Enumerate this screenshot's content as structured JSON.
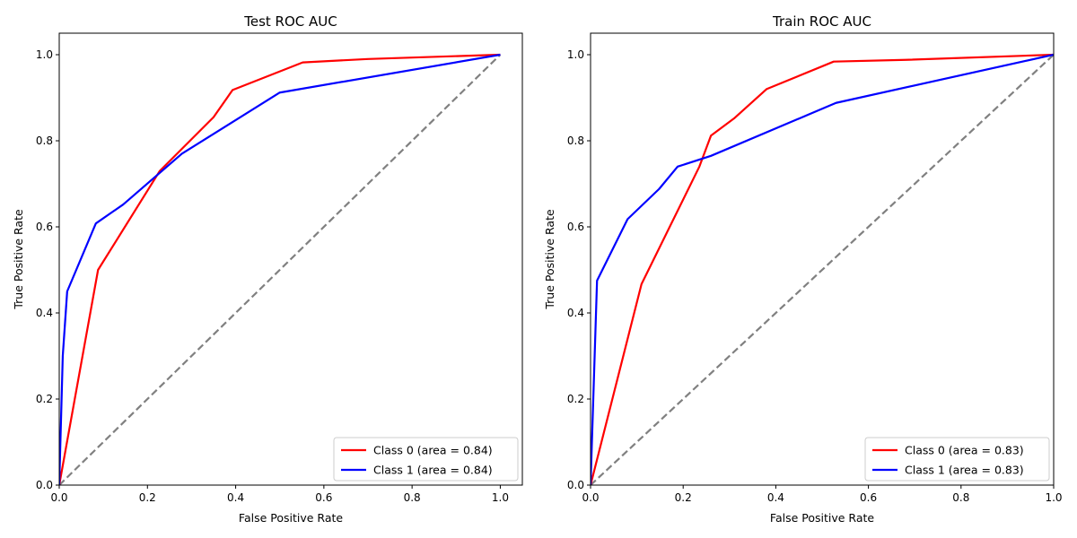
{
  "chart_data": [
    {
      "type": "line",
      "title": "Test ROC AUC",
      "xlabel": "False Positive Rate",
      "ylabel": "True Positive Rate",
      "xlim": [
        0.0,
        1.05
      ],
      "ylim": [
        0.0,
        1.05
      ],
      "grid": false,
      "legend_position": "lower right",
      "xticks": [
        "0.0",
        "0.2",
        "0.4",
        "0.6",
        "0.8",
        "1.0"
      ],
      "yticks": [
        "0.0",
        "0.2",
        "0.4",
        "0.6",
        "0.8",
        "1.0"
      ],
      "series": [
        {
          "name": "Class 0 (area = 0.84)",
          "color": "#ff0000",
          "x": [
            0.0,
            0.088,
            0.228,
            0.35,
            0.393,
            0.552,
            0.7,
            1.0
          ],
          "y": [
            0.0,
            0.5,
            0.73,
            0.855,
            0.918,
            0.982,
            0.99,
            1.0
          ]
        },
        {
          "name": "Class 1 (area = 0.84)",
          "color": "#0000ff",
          "x": [
            0.0,
            0.008,
            0.018,
            0.083,
            0.145,
            0.278,
            0.5,
            1.0
          ],
          "y": [
            0.0,
            0.3,
            0.45,
            0.608,
            0.652,
            0.77,
            0.912,
            1.0
          ]
        }
      ],
      "reference_line": {
        "x": [
          0.0,
          1.0
        ],
        "y": [
          0.0,
          1.0
        ],
        "color": "#808080",
        "style": "dashed"
      }
    },
    {
      "type": "line",
      "title": "Train ROC AUC",
      "xlabel": "False Positive Rate",
      "ylabel": "True Positive Rate",
      "xlim": [
        0.0,
        1.0
      ],
      "ylim": [
        0.0,
        1.05
      ],
      "grid": false,
      "legend_position": "lower right",
      "xticks": [
        "0.0",
        "0.2",
        "0.4",
        "0.6",
        "0.8",
        "1.0"
      ],
      "yticks": [
        "0.0",
        "0.2",
        "0.4",
        "0.6",
        "0.8",
        "1.0"
      ],
      "series": [
        {
          "name": "Class 0 (area = 0.83)",
          "color": "#ff0000",
          "x": [
            0.0,
            0.11,
            0.235,
            0.26,
            0.31,
            0.38,
            0.525,
            0.68,
            1.0
          ],
          "y": [
            0.0,
            0.467,
            0.74,
            0.812,
            0.852,
            0.92,
            0.984,
            0.988,
            1.0
          ]
        },
        {
          "name": "Class 1 (area = 0.83)",
          "color": "#0000ff",
          "x": [
            0.0,
            0.014,
            0.08,
            0.148,
            0.188,
            0.26,
            0.53,
            1.0
          ],
          "y": [
            0.0,
            0.475,
            0.618,
            0.688,
            0.74,
            0.765,
            0.888,
            1.0
          ]
        }
      ],
      "reference_line": {
        "x": [
          0.0,
          1.0
        ],
        "y": [
          0.0,
          1.0
        ],
        "color": "#808080",
        "style": "dashed"
      }
    }
  ]
}
